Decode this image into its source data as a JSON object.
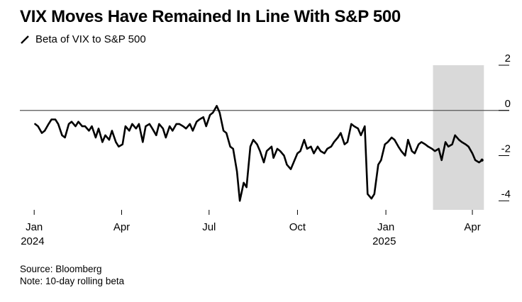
{
  "chart_data": {
    "type": "line",
    "title": "VIX Moves Have Remained In Line With S&P 500",
    "xlabel": "",
    "ylabel": "",
    "series": [
      {
        "name": "Beta of VIX to S&P 500",
        "color": "#000000",
        "x": [
          "2024-01-02",
          "2024-01-05",
          "2024-01-09",
          "2024-01-12",
          "2024-01-16",
          "2024-01-19",
          "2024-01-23",
          "2024-01-26",
          "2024-01-30",
          "2024-02-02",
          "2024-02-06",
          "2024-02-09",
          "2024-02-13",
          "2024-02-16",
          "2024-02-20",
          "2024-02-23",
          "2024-02-27",
          "2024-03-01",
          "2024-03-05",
          "2024-03-08",
          "2024-03-12",
          "2024-03-15",
          "2024-03-19",
          "2024-03-22",
          "2024-03-26",
          "2024-03-29",
          "2024-04-02",
          "2024-04-05",
          "2024-04-09",
          "2024-04-12",
          "2024-04-16",
          "2024-04-19",
          "2024-04-23",
          "2024-04-26",
          "2024-04-30",
          "2024-05-03",
          "2024-05-07",
          "2024-05-10",
          "2024-05-14",
          "2024-05-17",
          "2024-05-21",
          "2024-05-24",
          "2024-05-28",
          "2024-05-31",
          "2024-06-04",
          "2024-06-07",
          "2024-06-11",
          "2024-06-14",
          "2024-06-18",
          "2024-06-21",
          "2024-06-25",
          "2024-06-28",
          "2024-07-02",
          "2024-07-05",
          "2024-07-09",
          "2024-07-12",
          "2024-07-16",
          "2024-07-19",
          "2024-07-23",
          "2024-07-26",
          "2024-07-30",
          "2024-08-02",
          "2024-08-06",
          "2024-08-09",
          "2024-08-13",
          "2024-08-16",
          "2024-08-20",
          "2024-08-23",
          "2024-08-27",
          "2024-08-30",
          "2024-09-04",
          "2024-09-06",
          "2024-09-10",
          "2024-09-13",
          "2024-09-17",
          "2024-09-20",
          "2024-09-24",
          "2024-09-27",
          "2024-10-01",
          "2024-10-04",
          "2024-10-08",
          "2024-10-11",
          "2024-10-15",
          "2024-10-18",
          "2024-10-22",
          "2024-10-25",
          "2024-10-29",
          "2024-11-01",
          "2024-11-05",
          "2024-11-08",
          "2024-11-12",
          "2024-11-15",
          "2024-11-19",
          "2024-11-22",
          "2024-11-26",
          "2024-11-29",
          "2024-12-03",
          "2024-12-06",
          "2024-12-10",
          "2024-12-13",
          "2024-12-17",
          "2024-12-20",
          "2024-12-24",
          "2024-12-27",
          "2024-12-31",
          "2025-01-03",
          "2025-01-07",
          "2025-01-10",
          "2025-01-14",
          "2025-01-17",
          "2025-01-21",
          "2025-01-24",
          "2025-01-28",
          "2025-01-31",
          "2025-02-04",
          "2025-02-07",
          "2025-02-11",
          "2025-02-14",
          "2025-02-18",
          "2025-02-21",
          "2025-02-25",
          "2025-02-28",
          "2025-03-04",
          "2025-03-07",
          "2025-03-11",
          "2025-03-14",
          "2025-03-18",
          "2025-03-21",
          "2025-03-25",
          "2025-03-28",
          "2025-04-01",
          "2025-04-04",
          "2025-04-08",
          "2025-04-11"
        ],
        "values": [
          -0.6,
          -0.7,
          -1.0,
          -0.9,
          -0.6,
          -0.4,
          -0.4,
          -0.6,
          -1.1,
          -1.2,
          -0.6,
          -0.5,
          -0.7,
          -0.5,
          -0.7,
          -0.7,
          -0.9,
          -0.7,
          -1.2,
          -0.8,
          -1.4,
          -1.1,
          -1.3,
          -0.9,
          -1.4,
          -1.6,
          -1.5,
          -0.7,
          -0.9,
          -0.6,
          -0.8,
          -0.6,
          -1.4,
          -0.7,
          -0.6,
          -0.8,
          -1.1,
          -0.6,
          -0.8,
          -1.2,
          -0.7,
          -0.9,
          -0.6,
          -0.6,
          -0.7,
          -0.8,
          -0.6,
          -0.9,
          -0.5,
          -0.4,
          -0.3,
          -0.7,
          -0.2,
          -0.1,
          0.2,
          -0.1,
          -0.9,
          -1.0,
          -1.6,
          -1.7,
          -2.7,
          -4.0,
          -3.2,
          -3.4,
          -1.6,
          -1.3,
          -1.5,
          -1.8,
          -2.3,
          -1.8,
          -1.6,
          -2.1,
          -1.7,
          -1.8,
          -2.0,
          -2.4,
          -2.6,
          -2.3,
          -1.9,
          -1.8,
          -1.3,
          -1.7,
          -1.6,
          -1.9,
          -1.6,
          -1.8,
          -1.9,
          -1.7,
          -1.6,
          -1.4,
          -1.2,
          -1.0,
          -1.5,
          -1.4,
          -0.6,
          -0.7,
          -0.8,
          -1.1,
          -0.7,
          -3.7,
          -3.9,
          -3.7,
          -2.4,
          -2.2,
          -1.5,
          -1.4,
          -1.2,
          -1.3,
          -1.6,
          -1.8,
          -2.0,
          -1.3,
          -1.8,
          -1.9,
          -1.5,
          -1.4,
          -1.5,
          -1.6,
          -1.7,
          -1.8,
          -1.7,
          -2.2,
          -1.4,
          -1.6,
          -1.5,
          -1.1,
          -1.3,
          -1.4,
          -1.5,
          -1.6,
          -1.9,
          -2.2,
          -2.3,
          -2.2
        ]
      }
    ],
    "xticks": [
      {
        "date": "2024-01-01",
        "label": "Jan",
        "sublabel": "2024"
      },
      {
        "date": "2024-04-01",
        "label": "Apr",
        "sublabel": ""
      },
      {
        "date": "2024-07-01",
        "label": "Jul",
        "sublabel": ""
      },
      {
        "date": "2024-10-01",
        "label": "Oct",
        "sublabel": ""
      },
      {
        "date": "2025-01-01",
        "label": "Jan",
        "sublabel": "2025"
      },
      {
        "date": "2025-04-01",
        "label": "Apr",
        "sublabel": ""
      }
    ],
    "yticks": [
      2,
      0,
      -2,
      -4
    ],
    "ytick_labels": [
      "2",
      "0",
      "-2",
      "-4"
    ],
    "ylim": [
      -4.4,
      2.0
    ],
    "xlim": [
      "2023-12-23",
      "2025-04-15"
    ],
    "reference_line": 0,
    "shaded_region": {
      "start": "2025-02-19",
      "end": "2025-04-13",
      "color": "#d9d9d9"
    },
    "grid": false,
    "legend": "top-left",
    "y_axis_side": "right"
  },
  "footer": {
    "source": "Source: Bloomberg",
    "note": "Note: 10-day rolling beta"
  }
}
